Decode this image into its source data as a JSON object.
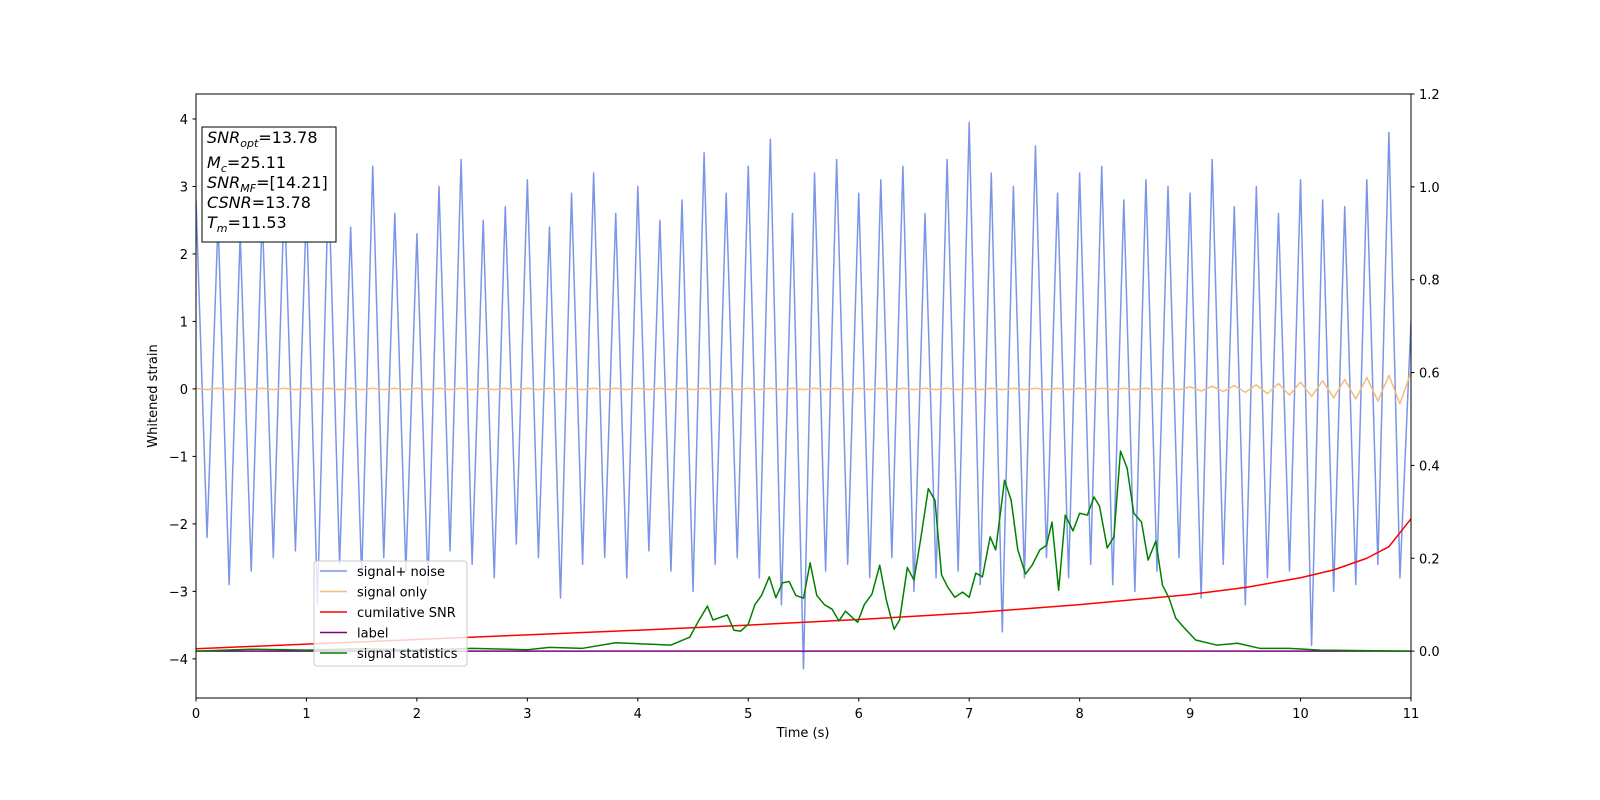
{
  "chart_data": {
    "type": "line",
    "xlabel": "Time (s)",
    "ylabel": "Whitened strain",
    "xlim": [
      0,
      11
    ],
    "ylim": [
      -4.58,
      4.37
    ],
    "y2lim": [
      -0.101,
      1.2
    ],
    "xticks": [
      0,
      1,
      2,
      3,
      4,
      5,
      6,
      7,
      8,
      9,
      10,
      11
    ],
    "yticks": [
      {
        "value": -4,
        "label": "−4"
      },
      {
        "value": -3,
        "label": "−3"
      },
      {
        "value": -2,
        "label": "−2"
      },
      {
        "value": -1,
        "label": "−1"
      },
      0,
      1,
      2,
      3,
      4
    ],
    "y2ticks": [
      {
        "value": 0,
        "label": "0.0"
      },
      {
        "value": 0.2,
        "label": "0.2"
      },
      {
        "value": 0.4,
        "label": "0.4"
      },
      {
        "value": 0.6,
        "label": "0.6"
      },
      {
        "value": 0.8,
        "label": "0.8"
      },
      {
        "value": 1.0,
        "label": "1.0"
      },
      {
        "value": 1.2,
        "label": "1.2"
      }
    ],
    "grid": false,
    "legend_loc": "lower left",
    "annotations": [
      {
        "main": "SNR",
        "sub": "opt",
        "rest": "=13.78"
      },
      {
        "main": "M",
        "sub": "c",
        "rest": "=25.11"
      },
      {
        "main": "SNR",
        "sub": "MF",
        "rest": "=[14.21]"
      },
      {
        "main": "CSNR",
        "rest": "=13.78"
      },
      {
        "main": "T",
        "sub": "m",
        "rest": "=11.53"
      }
    ],
    "x": [
      0,
      0.1,
      0.2,
      0.3,
      0.4,
      0.5,
      0.6,
      0.7,
      0.8,
      0.9,
      1,
      1.1,
      1.2,
      1.3,
      1.4,
      1.5,
      1.6,
      1.7,
      1.8,
      1.9,
      2,
      2.1,
      2.2,
      2.3,
      2.4,
      2.5,
      2.6,
      2.7,
      2.8,
      2.9,
      3,
      3.1,
      3.2,
      3.3,
      3.4,
      3.5,
      3.6,
      3.7,
      3.8,
      3.9,
      4,
      4.1,
      4.2,
      4.3,
      4.4,
      4.5,
      4.6,
      4.7,
      4.8,
      4.9,
      5,
      5.1,
      5.2,
      5.3,
      5.4,
      5.5,
      5.6,
      5.7,
      5.8,
      5.9,
      6,
      6.1,
      6.2,
      6.3,
      6.4,
      6.5,
      6.6,
      6.7,
      6.8,
      6.9,
      7,
      7.1,
      7.2,
      7.3,
      7.4,
      7.5,
      7.6,
      7.7,
      7.8,
      7.9,
      8,
      8.1,
      8.2,
      8.3,
      8.4,
      8.5,
      8.6,
      8.7,
      8.8,
      8.9,
      9,
      9.1,
      9.2,
      9.3,
      9.4,
      9.5,
      9.6,
      9.7,
      9.8,
      9.9,
      10,
      10.1,
      10.2,
      10.3,
      10.4,
      10.5,
      10.6,
      10.7,
      10.8,
      10.9,
      11
    ],
    "series": [
      {
        "name": "signal+ noise",
        "color": "#7b96e8",
        "values": [
          2.8,
          -2.2,
          2.5,
          -2.9,
          2.3,
          -2.7,
          2.6,
          -2.5,
          2.9,
          -2.4,
          2.7,
          -3.2,
          3.1,
          -2.6,
          2.4,
          -2.8,
          3.3,
          -2.5,
          2.6,
          -2.7,
          2.3,
          -2.9,
          3.0,
          -2.4,
          3.4,
          -2.6,
          2.5,
          -2.8,
          2.7,
          -2.3,
          3.1,
          -2.5,
          2.4,
          -3.1,
          2.9,
          -2.6,
          3.2,
          -2.5,
          2.6,
          -2.8,
          3.0,
          -2.4,
          2.5,
          -2.7,
          2.8,
          -3.0,
          3.5,
          -2.6,
          2.9,
          -2.5,
          3.3,
          -2.8,
          3.7,
          -3.2,
          2.6,
          -4.15,
          3.2,
          -2.7,
          3.4,
          -2.6,
          2.9,
          -2.8,
          3.1,
          -2.5,
          3.3,
          -3.0,
          2.6,
          -2.8,
          3.4,
          -2.7,
          3.95,
          -2.9,
          3.2,
          -3.6,
          3.0,
          -2.8,
          3.6,
          -2.5,
          2.9,
          -2.8,
          3.2,
          -2.6,
          3.3,
          -2.9,
          2.8,
          -3.0,
          3.1,
          -2.7,
          3.0,
          -2.5,
          2.9,
          -3.1,
          3.4,
          -2.6,
          2.7,
          -3.2,
          3.0,
          -2.8,
          2.6,
          -2.7,
          3.1,
          -3.8,
          2.8,
          -3.0,
          2.7,
          -2.9,
          3.1,
          -2.6,
          3.8,
          -2.8,
          1.0
        ]
      },
      {
        "name": "signal only",
        "color": "#f5bd7d",
        "values": [
          0.01,
          -0.01,
          0.01,
          -0.01,
          0.01,
          -0.01,
          0.01,
          -0.01,
          0.01,
          -0.01,
          0.01,
          -0.01,
          0.01,
          -0.01,
          0.01,
          -0.01,
          0.01,
          -0.01,
          0.01,
          -0.01,
          0.01,
          -0.01,
          0.01,
          -0.01,
          0.01,
          -0.01,
          0.01,
          -0.01,
          0.01,
          -0.01,
          0.01,
          -0.01,
          0.01,
          -0.01,
          0.01,
          -0.01,
          0.01,
          -0.01,
          0.01,
          -0.01,
          0.01,
          -0.01,
          0.01,
          -0.01,
          0.01,
          -0.01,
          0.01,
          -0.01,
          0.01,
          -0.01,
          0.01,
          -0.01,
          0.01,
          -0.01,
          0.01,
          -0.01,
          0.01,
          -0.01,
          0.01,
          -0.01,
          0.01,
          -0.01,
          0.01,
          -0.01,
          0.01,
          -0.01,
          0.01,
          -0.01,
          0.01,
          -0.01,
          0.01,
          -0.01,
          0.01,
          -0.01,
          0.01,
          -0.01,
          0.01,
          -0.01,
          0.01,
          -0.01,
          0.01,
          -0.01,
          0.01,
          -0.01,
          0.01,
          -0.01,
          0.01,
          -0.01,
          0.01,
          -0.01,
          0.03,
          -0.03,
          0.04,
          -0.04,
          0.05,
          -0.05,
          0.06,
          -0.07,
          0.08,
          -0.09,
          0.1,
          -0.11,
          0.12,
          -0.13,
          0.14,
          -0.15,
          0.17,
          -0.18,
          0.2,
          -0.22,
          0.25
        ]
      },
      {
        "name": "cumilative SNR",
        "color": "#ff0000",
        "axis": "y2",
        "x": [
          0,
          1,
          2,
          3,
          4,
          5,
          6,
          7,
          8,
          9,
          9.5,
          10,
          10.3,
          10.6,
          10.8,
          11
        ],
        "values": [
          0.005,
          0.015,
          0.025,
          0.035,
          0.045,
          0.056,
          0.068,
          0.082,
          0.1,
          0.122,
          0.137,
          0.158,
          0.175,
          0.2,
          0.225,
          0.285
        ]
      },
      {
        "name": "label",
        "color": "#800080",
        "axis": "y2",
        "x": [
          0,
          11
        ],
        "values": [
          0,
          0
        ]
      },
      {
        "name": "signal statistics",
        "color": "#008000",
        "axis": "y2",
        "x": [
          0,
          0.5,
          1,
          1.5,
          2,
          2.5,
          3,
          3.2,
          3.5,
          3.8,
          4.1,
          4.3,
          4.47,
          4.55,
          4.63,
          4.68,
          4.81,
          4.87,
          4.93,
          5.0,
          5.06,
          5.12,
          5.19,
          5.25,
          5.31,
          5.37,
          5.43,
          5.5,
          5.56,
          5.62,
          5.69,
          5.76,
          5.82,
          5.88,
          5.99,
          6.05,
          6.12,
          6.19,
          6.25,
          6.32,
          6.37,
          6.44,
          6.5,
          6.56,
          6.63,
          6.69,
          6.75,
          6.81,
          6.87,
          6.94,
          7.0,
          7.06,
          7.12,
          7.19,
          7.24,
          7.32,
          7.38,
          7.44,
          7.51,
          7.57,
          7.64,
          7.7,
          7.75,
          7.81,
          7.87,
          7.94,
          8.0,
          8.07,
          8.13,
          8.18,
          8.25,
          8.31,
          8.37,
          8.43,
          8.49,
          8.56,
          8.62,
          8.69,
          8.75,
          8.81,
          8.87,
          8.94,
          9.05,
          9.24,
          9.43,
          9.63,
          9.9,
          10.18,
          11
        ],
        "values": [
          0,
          0.004,
          0.002,
          0.005,
          0.002,
          0.006,
          0.003,
          0.008,
          0.006,
          0.018,
          0.015,
          0.013,
          0.03,
          0.065,
          0.097,
          0.067,
          0.078,
          0.045,
          0.043,
          0.058,
          0.1,
          0.12,
          0.16,
          0.115,
          0.147,
          0.15,
          0.12,
          0.114,
          0.19,
          0.12,
          0.1,
          0.09,
          0.065,
          0.086,
          0.062,
          0.1,
          0.123,
          0.185,
          0.11,
          0.047,
          0.067,
          0.18,
          0.153,
          0.24,
          0.35,
          0.325,
          0.164,
          0.136,
          0.116,
          0.127,
          0.116,
          0.168,
          0.16,
          0.246,
          0.218,
          0.368,
          0.325,
          0.218,
          0.166,
          0.185,
          0.218,
          0.228,
          0.278,
          0.131,
          0.293,
          0.259,
          0.297,
          0.293,
          0.332,
          0.312,
          0.222,
          0.246,
          0.431,
          0.394,
          0.297,
          0.278,
          0.196,
          0.237,
          0.142,
          0.114,
          0.071,
          0.052,
          0.024,
          0.013,
          0.017,
          0.006,
          0.006,
          0.002,
          0
        ]
      }
    ]
  }
}
